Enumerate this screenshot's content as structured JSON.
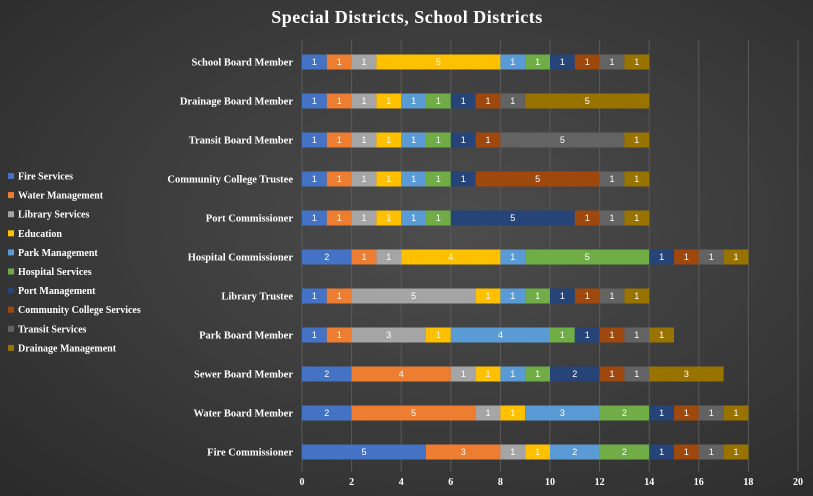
{
  "chart_data": {
    "type": "bar",
    "orientation": "horizontal",
    "stacked": true,
    "title": "Special Districts, School Districts",
    "xlabel": "",
    "ylabel": "",
    "xlim": [
      0,
      20
    ],
    "xticks": [
      0,
      2,
      4,
      6,
      8,
      10,
      12,
      14,
      16,
      18,
      20
    ],
    "legend_position": "left",
    "grid": true,
    "categories": [
      "School Board Member",
      "Drainage Board Member",
      "Transit Board Member",
      "Community College Trustee",
      "Port Commissioner",
      "Hospital Commissioner",
      "Library Trustee",
      "Park Board Member",
      "Sewer Board Member",
      "Water Board Member",
      "Fire Commissioner"
    ],
    "series": [
      {
        "name": "Fire Services",
        "color": "#4472c4",
        "values": [
          1,
          1,
          1,
          1,
          1,
          2,
          1,
          1,
          2,
          2,
          5
        ]
      },
      {
        "name": "Water Management",
        "color": "#ed7d31",
        "values": [
          1,
          1,
          1,
          1,
          1,
          1,
          1,
          1,
          4,
          5,
          3
        ]
      },
      {
        "name": "Library Services",
        "color": "#a5a5a5",
        "values": [
          1,
          1,
          1,
          1,
          1,
          1,
          5,
          3,
          1,
          1,
          1
        ]
      },
      {
        "name": "Education",
        "color": "#ffc000",
        "values": [
          5,
          1,
          1,
          1,
          1,
          4,
          1,
          1,
          1,
          1,
          1
        ]
      },
      {
        "name": "Park Management",
        "color": "#5b9bd5",
        "values": [
          1,
          1,
          1,
          1,
          1,
          1,
          1,
          4,
          1,
          3,
          2
        ]
      },
      {
        "name": "Hospital Services",
        "color": "#70ad47",
        "values": [
          1,
          1,
          1,
          1,
          1,
          5,
          1,
          1,
          1,
          2,
          2
        ]
      },
      {
        "name": "Port Management",
        "color": "#264478",
        "values": [
          1,
          1,
          1,
          1,
          5,
          1,
          1,
          1,
          2,
          1,
          1
        ]
      },
      {
        "name": "Community College Services",
        "color": "#9e480e",
        "values": [
          1,
          1,
          1,
          5,
          1,
          1,
          1,
          1,
          1,
          1,
          1
        ]
      },
      {
        "name": "Transit Services",
        "color": "#636363",
        "values": [
          1,
          1,
          5,
          1,
          1,
          1,
          1,
          1,
          1,
          1,
          1
        ]
      },
      {
        "name": "Drainage Management",
        "color": "#997300",
        "values": [
          1,
          5,
          1,
          1,
          1,
          1,
          1,
          1,
          3,
          1,
          1
        ]
      }
    ]
  }
}
